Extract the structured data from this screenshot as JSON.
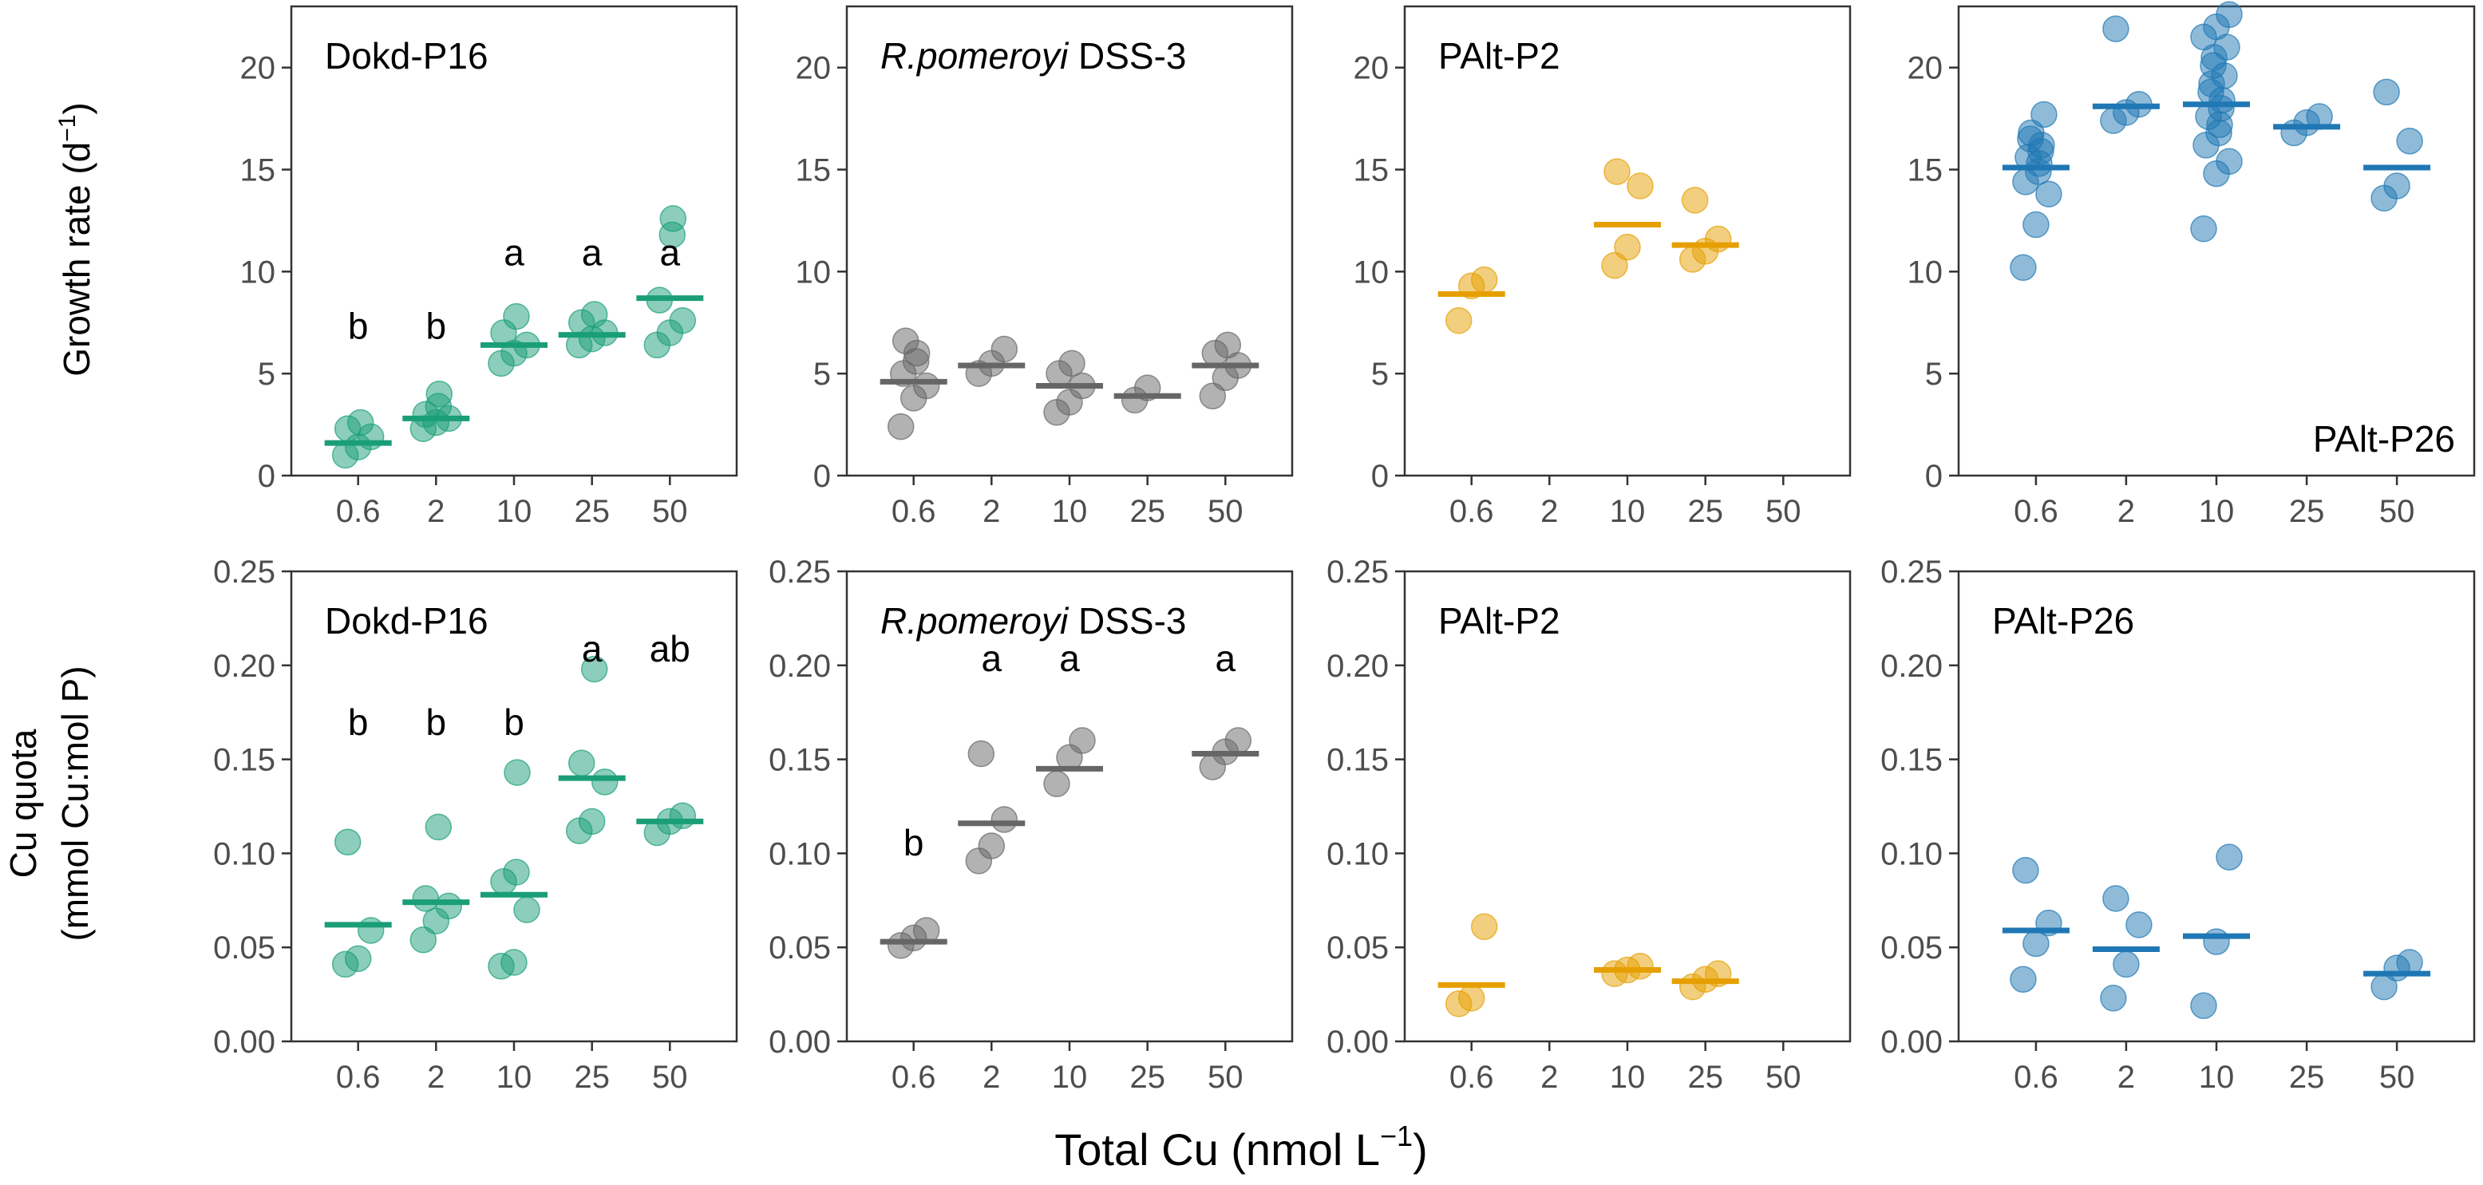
{
  "figure": {
    "ylabel_top": "Growth rate (d",
    "ylabel_top_sup": "−1",
    "ylabel_top_close": ")",
    "ylabel_bottom_line1": "Cu quota",
    "ylabel_bottom_line2": "(mmol Cu:mol P)",
    "xlabel": "Total Cu (nmol L",
    "xlabel_sup": "−1",
    "xlabel_close": ")"
  },
  "colors": {
    "green": "#1a9e77",
    "gray": "#666666",
    "orange": "#e69f00",
    "blue": "#1f77b4"
  },
  "chart_data": [
    {
      "type": "scatter",
      "id": "growth-dokd",
      "row": "growth",
      "title": "Dokd-P16",
      "title_italic": "",
      "title_pos": "top-left",
      "color": "green",
      "categories": [
        "0.6",
        "2",
        "10",
        "25",
        "50"
      ],
      "ylim": [
        0,
        23
      ],
      "yticks": [
        0,
        5,
        10,
        15,
        20
      ],
      "yticklabels": [
        "0",
        "5",
        "10",
        "15",
        "20"
      ],
      "series": [
        {
          "category": "0.6",
          "points": [
            1.0,
            1.4,
            1.9,
            2.3,
            2.6
          ],
          "median": 1.6,
          "letter": "b",
          "letter_y": 6.7
        },
        {
          "category": "2",
          "points": [
            2.3,
            2.6,
            2.8,
            3.0,
            3.4,
            4.0
          ],
          "median": 2.8,
          "letter": "b",
          "letter_y": 6.7
        },
        {
          "category": "10",
          "points": [
            5.5,
            6.0,
            6.4,
            7.0,
            7.8
          ],
          "median": 6.4,
          "letter": "a",
          "letter_y": 10.3
        },
        {
          "category": "25",
          "points": [
            6.4,
            6.7,
            7.0,
            7.5,
            7.9
          ],
          "median": 6.9,
          "letter": "a",
          "letter_y": 10.3
        },
        {
          "category": "50",
          "points": [
            6.4,
            7.0,
            7.6,
            8.6,
            11.8,
            12.6
          ],
          "median": 8.7,
          "letter": "a",
          "letter_y": 10.3
        }
      ]
    },
    {
      "type": "scatter",
      "id": "growth-rpom",
      "row": "growth",
      "title": " DSS-3",
      "title_italic": "R.pomeroyi",
      "title_pos": "top-left",
      "color": "gray",
      "categories": [
        "0.6",
        "2",
        "10",
        "25",
        "50"
      ],
      "ylim": [
        0,
        23
      ],
      "yticks": [
        0,
        5,
        10,
        15,
        20
      ],
      "yticklabels": [
        "0",
        "5",
        "10",
        "15",
        "20"
      ],
      "series": [
        {
          "category": "0.6",
          "points": [
            2.4,
            3.8,
            4.4,
            5.0,
            5.6,
            6.0,
            6.6
          ],
          "median": 4.6,
          "letter": "",
          "letter_y": 0
        },
        {
          "category": "2",
          "points": [
            5.0,
            5.5,
            6.2
          ],
          "median": 5.4,
          "letter": "",
          "letter_y": 0
        },
        {
          "category": "10",
          "points": [
            3.1,
            3.6,
            4.4,
            5.0,
            5.5
          ],
          "median": 4.4,
          "letter": "",
          "letter_y": 0
        },
        {
          "category": "25",
          "points": [
            3.7,
            4.3
          ],
          "median": 3.9,
          "letter": "",
          "letter_y": 0
        },
        {
          "category": "50",
          "points": [
            3.9,
            4.8,
            5.4,
            6.0,
            6.4
          ],
          "median": 5.4,
          "letter": "",
          "letter_y": 0
        }
      ]
    },
    {
      "type": "scatter",
      "id": "growth-p2",
      "row": "growth",
      "title": "PAlt-P2",
      "title_italic": "",
      "title_pos": "top-left",
      "color": "orange",
      "categories": [
        "0.6",
        "2",
        "10",
        "25",
        "50"
      ],
      "ylim": [
        0,
        23
      ],
      "yticks": [
        0,
        5,
        10,
        15,
        20
      ],
      "yticklabels": [
        "0",
        "5",
        "10",
        "15",
        "20"
      ],
      "series": [
        {
          "category": "0.6",
          "points": [
            7.6,
            9.3,
            9.6
          ],
          "median": 8.9,
          "letter": "",
          "letter_y": 0
        },
        {
          "category": "10",
          "points": [
            10.3,
            11.2,
            14.2,
            14.9
          ],
          "median": 12.3,
          "letter": "",
          "letter_y": 0
        },
        {
          "category": "25",
          "points": [
            10.6,
            11.0,
            11.6,
            13.5
          ],
          "median": 11.3,
          "letter": "",
          "letter_y": 0
        }
      ]
    },
    {
      "type": "scatter",
      "id": "growth-p26",
      "row": "growth",
      "title": "PAlt-P26",
      "title_italic": "",
      "title_pos": "bottom-right",
      "color": "blue",
      "categories": [
        "0.6",
        "2",
        "10",
        "25",
        "50"
      ],
      "ylim": [
        0,
        23
      ],
      "yticks": [
        0,
        5,
        10,
        15,
        20
      ],
      "yticklabels": [
        "0",
        "5",
        "10",
        "15",
        "20"
      ],
      "series": [
        {
          "category": "0.6",
          "points": [
            10.2,
            12.3,
            13.8,
            14.4,
            14.9,
            15.3,
            15.6,
            15.9,
            16.2,
            16.5,
            16.8,
            17.7
          ],
          "median": 15.1,
          "letter": "",
          "letter_y": 0
        },
        {
          "category": "2",
          "points": [
            17.4,
            17.8,
            18.2,
            21.9
          ],
          "median": 18.1,
          "letter": "",
          "letter_y": 0
        },
        {
          "category": "10",
          "points": [
            12.1,
            14.8,
            15.4,
            16.2,
            16.8,
            17.2,
            17.6,
            18.0,
            18.4,
            18.8,
            19.2,
            19.6,
            20.1,
            20.5,
            21.0,
            21.5,
            22.0,
            22.6
          ],
          "median": 18.2,
          "letter": "",
          "letter_y": 0
        },
        {
          "category": "25",
          "points": [
            16.8,
            17.3,
            17.6
          ],
          "median": 17.1,
          "letter": "",
          "letter_y": 0
        },
        {
          "category": "50",
          "points": [
            13.6,
            14.2,
            16.4,
            18.8
          ],
          "median": 15.1,
          "letter": "",
          "letter_y": 0
        }
      ]
    },
    {
      "type": "scatter",
      "id": "quota-dokd",
      "row": "quota",
      "title": "Dokd-P16",
      "title_italic": "",
      "title_pos": "top-left",
      "color": "green",
      "categories": [
        "0.6",
        "2",
        "10",
        "25",
        "50"
      ],
      "ylim": [
        0,
        0.25
      ],
      "yticks": [
        0,
        0.05,
        0.1,
        0.15,
        0.2,
        0.25
      ],
      "yticklabels": [
        "0.00",
        "0.05",
        "0.10",
        "0.15",
        "0.20",
        "0.25"
      ],
      "series": [
        {
          "category": "0.6",
          "points": [
            0.041,
            0.044,
            0.059,
            0.106
          ],
          "median": 0.062,
          "letter": "b",
          "letter_y": 0.163
        },
        {
          "category": "2",
          "points": [
            0.054,
            0.064,
            0.072,
            0.076,
            0.114
          ],
          "median": 0.074,
          "letter": "b",
          "letter_y": 0.163
        },
        {
          "category": "10",
          "points": [
            0.04,
            0.042,
            0.07,
            0.085,
            0.09,
            0.143
          ],
          "median": 0.078,
          "letter": "b",
          "letter_y": 0.163
        },
        {
          "category": "25",
          "points": [
            0.112,
            0.117,
            0.138,
            0.148,
            0.198
          ],
          "median": 0.14,
          "letter": "a",
          "letter_y": 0.202
        },
        {
          "category": "50",
          "points": [
            0.111,
            0.117,
            0.12
          ],
          "median": 0.117,
          "letter": "ab",
          "letter_y": 0.202
        }
      ]
    },
    {
      "type": "scatter",
      "id": "quota-rpom",
      "row": "quota",
      "title": " DSS-3",
      "title_italic": "R.pomeroyi",
      "title_pos": "top-left",
      "color": "gray",
      "categories": [
        "0.6",
        "2",
        "10",
        "25",
        "50"
      ],
      "ylim": [
        0,
        0.25
      ],
      "yticks": [
        0,
        0.05,
        0.1,
        0.15,
        0.2,
        0.25
      ],
      "yticklabels": [
        "0.00",
        "0.05",
        "0.10",
        "0.15",
        "0.20",
        "0.25"
      ],
      "series": [
        {
          "category": "0.6",
          "points": [
            0.051,
            0.055,
            0.059
          ],
          "median": 0.053,
          "letter": "b",
          "letter_y": 0.099
        },
        {
          "category": "2",
          "points": [
            0.096,
            0.104,
            0.118,
            0.153
          ],
          "median": 0.116,
          "letter": "a",
          "letter_y": 0.197
        },
        {
          "category": "10",
          "points": [
            0.137,
            0.151,
            0.16
          ],
          "median": 0.145,
          "letter": "a",
          "letter_y": 0.197
        },
        {
          "category": "50",
          "points": [
            0.146,
            0.154,
            0.16
          ],
          "median": 0.153,
          "letter": "a",
          "letter_y": 0.197
        }
      ]
    },
    {
      "type": "scatter",
      "id": "quota-p2",
      "row": "quota",
      "title": "PAlt-P2",
      "title_italic": "",
      "title_pos": "top-left",
      "color": "orange",
      "categories": [
        "0.6",
        "2",
        "10",
        "25",
        "50"
      ],
      "ylim": [
        0,
        0.25
      ],
      "yticks": [
        0,
        0.05,
        0.1,
        0.15,
        0.2,
        0.25
      ],
      "yticklabels": [
        "0.00",
        "0.05",
        "0.10",
        "0.15",
        "0.20",
        "0.25"
      ],
      "series": [
        {
          "category": "0.6",
          "points": [
            0.02,
            0.023,
            0.061
          ],
          "median": 0.03,
          "letter": "",
          "letter_y": 0
        },
        {
          "category": "10",
          "points": [
            0.036,
            0.038,
            0.04
          ],
          "median": 0.038,
          "letter": "",
          "letter_y": 0
        },
        {
          "category": "25",
          "points": [
            0.029,
            0.033,
            0.036
          ],
          "median": 0.032,
          "letter": "",
          "letter_y": 0
        }
      ]
    },
    {
      "type": "scatter",
      "id": "quota-p26",
      "row": "quota",
      "title": "PAlt-P26",
      "title_italic": "",
      "title_pos": "top-left",
      "color": "blue",
      "categories": [
        "0.6",
        "2",
        "10",
        "25",
        "50"
      ],
      "ylim": [
        0,
        0.25
      ],
      "yticks": [
        0,
        0.05,
        0.1,
        0.15,
        0.2,
        0.25
      ],
      "yticklabels": [
        "0.00",
        "0.05",
        "0.10",
        "0.15",
        "0.20",
        "0.25"
      ],
      "series": [
        {
          "category": "0.6",
          "points": [
            0.033,
            0.052,
            0.063,
            0.091
          ],
          "median": 0.059,
          "letter": "",
          "letter_y": 0
        },
        {
          "category": "2",
          "points": [
            0.023,
            0.041,
            0.062,
            0.076
          ],
          "median": 0.049,
          "letter": "",
          "letter_y": 0
        },
        {
          "category": "10",
          "points": [
            0.019,
            0.053,
            0.098
          ],
          "median": 0.056,
          "letter": "",
          "letter_y": 0
        },
        {
          "category": "50",
          "points": [
            0.029,
            0.039,
            0.042
          ],
          "median": 0.036,
          "letter": "",
          "letter_y": 0
        }
      ]
    }
  ]
}
